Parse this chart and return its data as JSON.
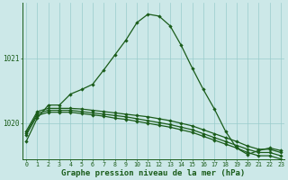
{
  "title": "Graphe pression niveau de la mer (hPa)",
  "background_color": "#cce8e8",
  "line_color": "#1a5c1a",
  "grid_color": "#99cccc",
  "hours": [
    0,
    1,
    2,
    3,
    4,
    5,
    6,
    7,
    8,
    9,
    10,
    11,
    12,
    13,
    14,
    15,
    16,
    17,
    18,
    19,
    20,
    21,
    22,
    23
  ],
  "line1": [
    1019.72,
    1020.08,
    1020.28,
    1020.28,
    1020.45,
    1020.52,
    1020.6,
    1020.82,
    1021.05,
    1021.28,
    1021.55,
    1021.68,
    1021.65,
    1021.5,
    1021.2,
    1020.85,
    1020.52,
    1020.22,
    1019.88,
    1019.62,
    1019.52,
    1019.58,
    1019.62,
    1019.58
  ],
  "line2": [
    1019.88,
    1020.18,
    1020.23,
    1020.23,
    1020.23,
    1020.22,
    1020.2,
    1020.18,
    1020.16,
    1020.14,
    1020.12,
    1020.1,
    1020.07,
    1020.04,
    1020.0,
    1019.96,
    1019.9,
    1019.84,
    1019.78,
    1019.72,
    1019.65,
    1019.6,
    1019.6,
    1019.55
  ],
  "line3": [
    1019.85,
    1020.15,
    1020.2,
    1020.2,
    1020.2,
    1020.18,
    1020.16,
    1020.14,
    1020.12,
    1020.1,
    1020.07,
    1020.04,
    1020.01,
    1019.98,
    1019.94,
    1019.9,
    1019.84,
    1019.78,
    1019.72,
    1019.66,
    1019.6,
    1019.55,
    1019.55,
    1019.5
  ],
  "line4": [
    1019.82,
    1020.12,
    1020.17,
    1020.17,
    1020.17,
    1020.15,
    1020.13,
    1020.11,
    1020.08,
    1020.06,
    1020.03,
    1020.0,
    1019.97,
    1019.94,
    1019.9,
    1019.86,
    1019.8,
    1019.74,
    1019.68,
    1019.62,
    1019.55,
    1019.5,
    1019.5,
    1019.45
  ],
  "ylim": [
    1019.45,
    1021.85
  ],
  "yticks": [
    1020,
    1021
  ],
  "title_fontsize": 6.5
}
